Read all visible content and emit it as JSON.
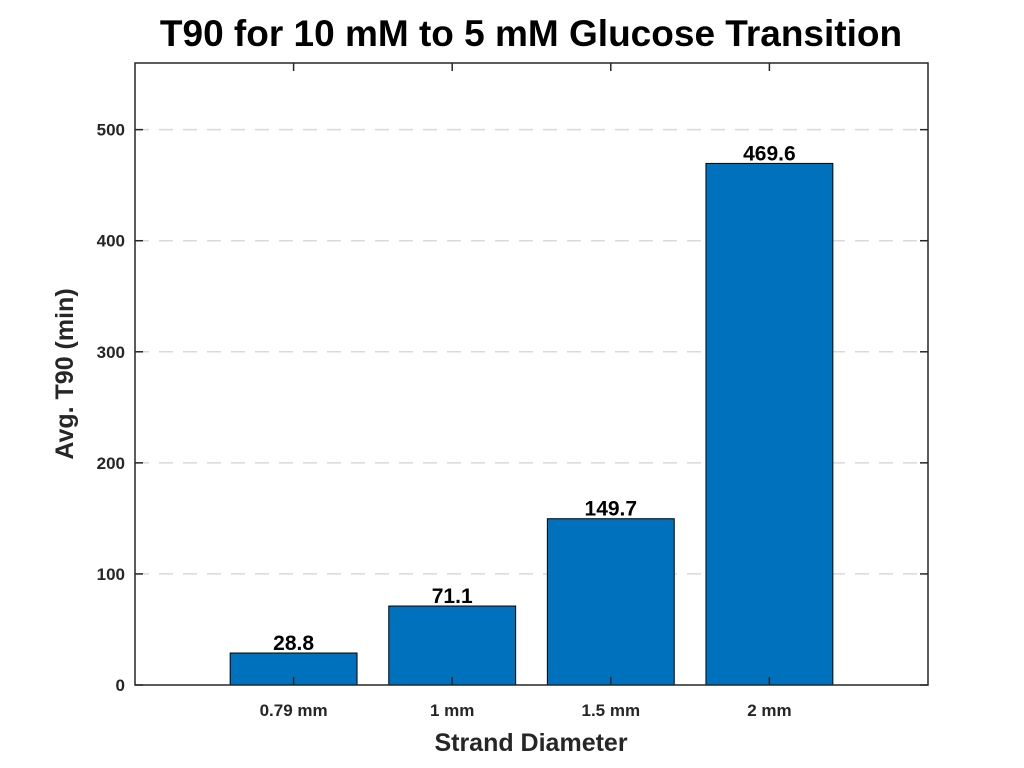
{
  "chart_data": {
    "type": "bar",
    "title": "T90 for 10 mM to 5 mM Glucose Transition",
    "xlabel": "Strand Diameter",
    "ylabel": "Avg. T90 (min)",
    "categories": [
      "0.79 mm",
      "1 mm",
      "1.5 mm",
      "2 mm"
    ],
    "values": [
      28.8,
      71.1,
      149.7,
      469.6
    ],
    "data_labels": [
      "28.8",
      "71.1",
      "149.7",
      "469.6"
    ],
    "ylim": [
      0,
      560
    ],
    "xlim": [
      0,
      5
    ],
    "category_positions": [
      1,
      2,
      3,
      4
    ],
    "yticks": [
      0,
      100,
      200,
      300,
      400,
      500
    ],
    "ytick_labels": [
      "0",
      "100",
      "200",
      "300",
      "400",
      "500"
    ],
    "grid": "y-dashed",
    "legend": "none",
    "colors": {
      "bar": "#0072bd",
      "grid": "#d9d9d9",
      "axis": "#262626"
    }
  }
}
